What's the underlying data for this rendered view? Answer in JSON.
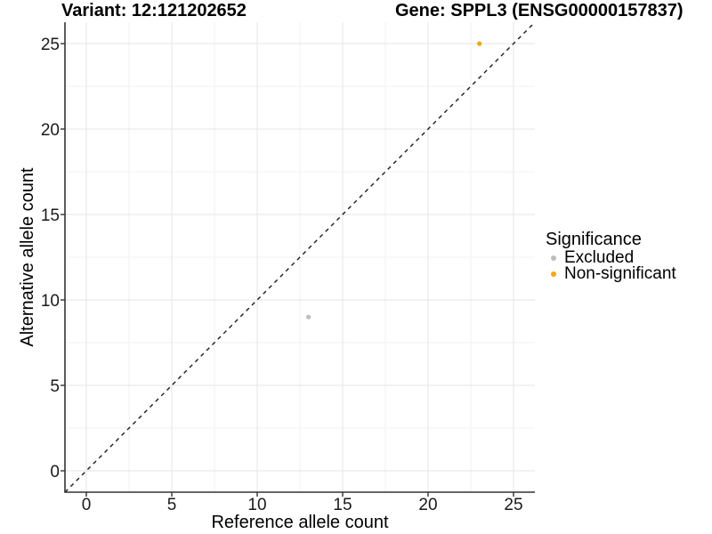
{
  "figure": {
    "title_variant": "Variant: 12:121202652",
    "title_gene": "Gene: SPPL3 (ENSG00000157837)"
  },
  "chart_data": {
    "type": "scatter",
    "title": "Variant: 12:121202652   Gene: SPPL3 (ENSG00000157837)",
    "xlabel": "Reference allele count",
    "ylabel": "Alternative allele count",
    "xlim": [
      -1.25,
      26.25
    ],
    "ylim": [
      -1.25,
      26.25
    ],
    "x_ticks": [
      0,
      5,
      10,
      15,
      20,
      25
    ],
    "y_ticks": [
      0,
      5,
      10,
      15,
      20,
      25
    ],
    "minor_ticks": [
      2.5,
      7.5,
      12.5,
      17.5,
      22.5
    ],
    "grid": "major-and-minor",
    "reference_line": {
      "type": "identity",
      "slope": 1,
      "intercept": 0,
      "style": "dashed",
      "color": "#1A1A1A"
    },
    "legend": {
      "title": "Significance",
      "position": "right"
    },
    "series": [
      {
        "name": "Excluded",
        "color": "#BEBEBE",
        "points": [
          {
            "x": 13,
            "y": 9
          }
        ]
      },
      {
        "name": "Non-significant",
        "color": "#FFA500",
        "points": [
          {
            "x": 23,
            "y": 25
          }
        ]
      }
    ]
  },
  "colors": {
    "background": "#FFFFFF",
    "grid_major": "#E4E4E4",
    "grid_minor": "#F2F2F2",
    "axis": "#333333",
    "text": "#1A1A1A"
  }
}
